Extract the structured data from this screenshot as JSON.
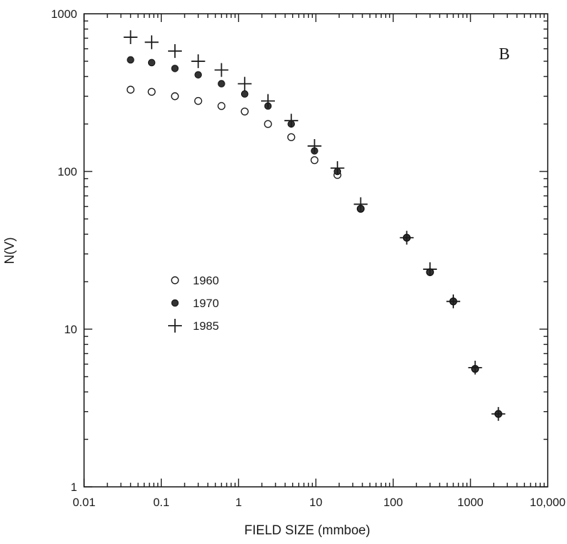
{
  "chart_data": {
    "type": "scatter",
    "panel_label": "B",
    "xlabel": "FIELD SIZE (mmboe)",
    "ylabel": "N(V)",
    "x_scale": "log",
    "y_scale": "log",
    "xlim": [
      0.01,
      10000
    ],
    "ylim": [
      1,
      1000
    ],
    "x_ticks": [
      {
        "value": 0.01,
        "label": "0.01"
      },
      {
        "value": 0.1,
        "label": "0.1"
      },
      {
        "value": 1,
        "label": "1"
      },
      {
        "value": 10,
        "label": "10"
      },
      {
        "value": 100,
        "label": "100"
      },
      {
        "value": 1000,
        "label": "1000"
      },
      {
        "value": 10000,
        "label": "10,000"
      }
    ],
    "y_ticks": [
      {
        "value": 1,
        "label": "1"
      },
      {
        "value": 10,
        "label": "10"
      },
      {
        "value": 100,
        "label": "100"
      },
      {
        "value": 1000,
        "label": "1000"
      }
    ],
    "grid": false,
    "legend_position": "left-middle",
    "series": [
      {
        "name": "1960",
        "marker": "open-circle",
        "x": [
          0.04,
          0.075,
          0.15,
          0.3,
          0.6,
          1.2,
          2.4,
          4.8,
          9.6,
          19,
          38,
          150,
          300,
          600,
          1150,
          2300
        ],
        "y": [
          330,
          320,
          300,
          280,
          260,
          240,
          200,
          165,
          118,
          95,
          58,
          38,
          23,
          15,
          5.6,
          2.9
        ]
      },
      {
        "name": "1970",
        "marker": "filled-circle",
        "x": [
          0.04,
          0.075,
          0.15,
          0.3,
          0.6,
          1.2,
          2.4,
          4.8,
          9.6,
          19,
          38,
          150,
          300,
          600,
          1150,
          2300
        ],
        "y": [
          510,
          490,
          450,
          410,
          360,
          310,
          260,
          200,
          135,
          100,
          58,
          38,
          23,
          15,
          5.6,
          2.9
        ]
      },
      {
        "name": "1985",
        "marker": "plus",
        "x": [
          0.04,
          0.075,
          0.15,
          0.3,
          0.6,
          1.2,
          2.4,
          4.8,
          9.6,
          19,
          38,
          150,
          300,
          600,
          1150,
          2300
        ],
        "y": [
          710,
          660,
          580,
          500,
          440,
          360,
          280,
          210,
          145,
          105,
          62,
          38,
          24,
          15,
          5.7,
          2.9
        ]
      }
    ]
  }
}
